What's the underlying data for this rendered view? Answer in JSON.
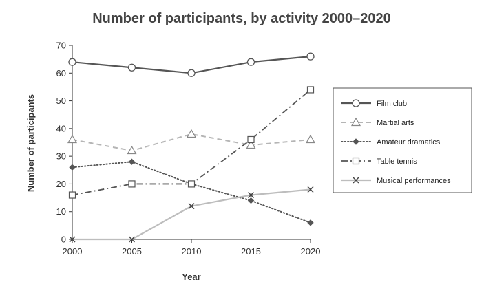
{
  "chart_data": {
    "type": "line",
    "title": "Number of participants, by activity 2000–2020",
    "xlabel": "Year",
    "ylabel": "Number of participants",
    "x": [
      2000,
      2005,
      2010,
      2015,
      2020
    ],
    "ylim": [
      0,
      70
    ],
    "yticks": [
      0,
      10,
      20,
      30,
      40,
      50,
      60,
      70
    ],
    "grid": false,
    "legend_position": "right",
    "series": [
      {
        "name": "Film club",
        "values": [
          64,
          62,
          60,
          64,
          66
        ],
        "color": "#555555",
        "style": "solid",
        "marker": "circle"
      },
      {
        "name": "Martial arts",
        "values": [
          36,
          32,
          38,
          34,
          36
        ],
        "color": "#b5b5b5",
        "style": "dashed",
        "marker": "triangle"
      },
      {
        "name": "Amateur dramatics",
        "values": [
          26,
          28,
          20,
          14,
          6
        ],
        "color": "#555555",
        "style": "dotted",
        "marker": "diamond"
      },
      {
        "name": "Table tennis",
        "values": [
          16,
          20,
          20,
          36,
          54
        ],
        "color": "#555555",
        "style": "dashdot",
        "marker": "square"
      },
      {
        "name": "Musical performances",
        "values": [
          0,
          0,
          12,
          16,
          18
        ],
        "color": "#bdbdbd",
        "style": "solid",
        "marker": "x"
      }
    ]
  }
}
